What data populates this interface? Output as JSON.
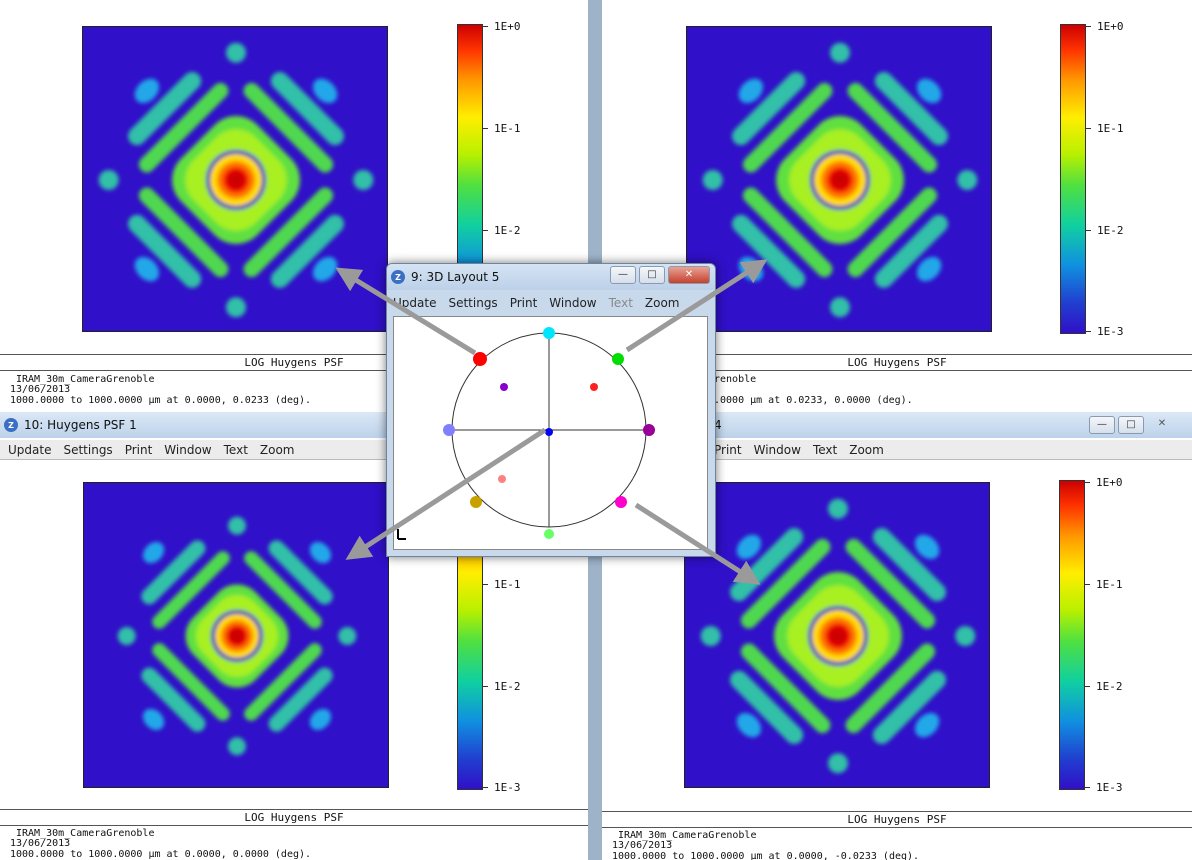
{
  "colors": {
    "background_blue": "#3010c8",
    "arrow": "#9a9a9a"
  },
  "colorbar_ticks": [
    "1E+0",
    "1E-1",
    "1E-2",
    "1E-3"
  ],
  "plot_title": "LOG Huygens PSF",
  "windows": {
    "top_left": {
      "info_lines": [
        "IRAM_30m_CameraGrenoble",
        "13/06/2013",
        "1000.0000 to 1000.0000 µm at 0.0000, 0.0233 (deg)."
      ]
    },
    "top_right": {
      "info_lines": [
        "renoble",
        "",
        ".0000 µm at 0.0233, 0.0000 (deg)."
      ]
    },
    "bottom_left": {
      "title": "10: Huygens PSF 1",
      "menu": [
        "Update",
        "Settings",
        "Print",
        "Window",
        "Text",
        "Zoom"
      ],
      "info_lines": [
        "IRAM_30m_CameraGrenoble",
        "13/06/2013",
        "1000.0000 to 1000.0000 µm at 0.0000, 0.0000 (deg)."
      ]
    },
    "bottom_right": {
      "title_fragment": "4",
      "menu": [
        "Print",
        "Window",
        "Text",
        "Zoom"
      ],
      "info_lines": [
        "IRAM_30m_CameraGrenoble",
        "13/06/2013",
        "1000.0000 to 1000.0000 µm at 0.0000, -0.0233 (deg)."
      ]
    },
    "layout": {
      "title": "9: 3D Layout 5",
      "menu": [
        {
          "label": "Update",
          "disabled": false
        },
        {
          "label": "Settings",
          "disabled": false
        },
        {
          "label": "Print",
          "disabled": false
        },
        {
          "label": "Window",
          "disabled": false
        },
        {
          "label": "Text",
          "disabled": true
        },
        {
          "label": "Zoom",
          "disabled": false
        }
      ],
      "spot_colors": [
        "#00e5ff",
        "#00dd00",
        "#990099",
        "#ff00cc",
        "#66ff66",
        "#c8a000",
        "#8080ff",
        "#ff0000",
        "#8800cc",
        "#ff2020",
        "#ff8080",
        "#0000ff"
      ]
    }
  }
}
